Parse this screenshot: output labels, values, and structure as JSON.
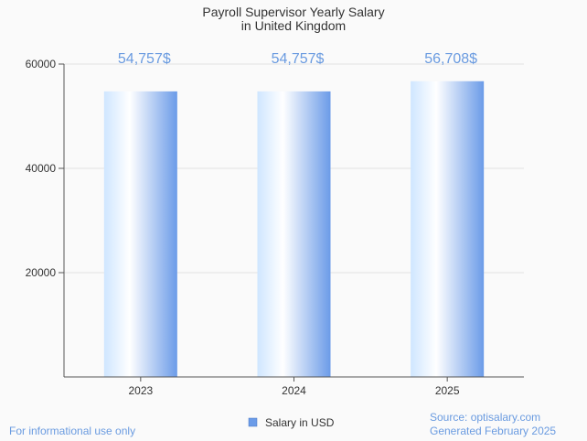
{
  "chart_data": {
    "type": "bar",
    "title_lines": [
      "Payroll Supervisor Yearly Salary",
      "in United Kingdom"
    ],
    "categories": [
      "2023",
      "2024",
      "2025"
    ],
    "series": [
      {
        "name": "Salary in USD",
        "values": [
          54757,
          54757,
          56708
        ],
        "labels": [
          "54,757$",
          "54,757$",
          "56,708$"
        ]
      }
    ],
    "ylim": [
      0,
      60000
    ],
    "yticks": [
      20000,
      40000,
      60000
    ],
    "ytick_labels": [
      "20000",
      "40000",
      "60000"
    ],
    "xlabel": "",
    "ylabel": "",
    "grid": true,
    "legend_position": "bottom-center"
  },
  "footer": {
    "left_note": "For informational use only",
    "source": "Source: optisalary.com",
    "generated": "Generated February 2025"
  },
  "colors": {
    "bar_light": "#ddefff",
    "bar_white": "#ffffff",
    "bar_dark": "#6b9be8",
    "label_blue": "#6a9be0",
    "axis": "#555555",
    "grid": "#e2e2e2",
    "legend_swatch": "#6b9be8"
  }
}
